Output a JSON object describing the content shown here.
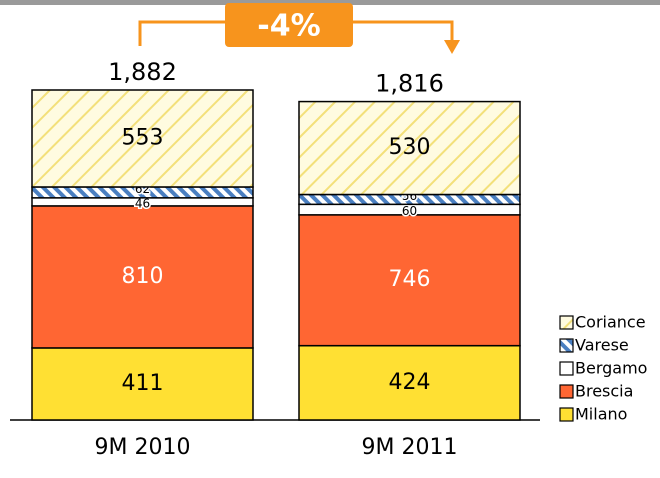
{
  "chart_data": {
    "type": "stacked_bar",
    "annotation": "-4%",
    "categories": [
      "9M 2010",
      "9M 2011"
    ],
    "series": [
      {
        "name": "Milano",
        "color": "#ffe033",
        "values": [
          411,
          424
        ]
      },
      {
        "name": "Brescia",
        "color": "#ff6633",
        "values": [
          810,
          746
        ]
      },
      {
        "name": "Bergamo",
        "color": "#ffffff",
        "values": [
          46,
          60
        ]
      },
      {
        "name": "Varese",
        "color": "#4a7fc1",
        "values": [
          62,
          56
        ]
      },
      {
        "name": "Coriance",
        "color": "#f3e07a",
        "values": [
          553,
          530
        ]
      }
    ],
    "totals": {
      "values": [
        1882,
        1816
      ],
      "value_labels": [
        "1,882",
        "1,816"
      ]
    }
  }
}
